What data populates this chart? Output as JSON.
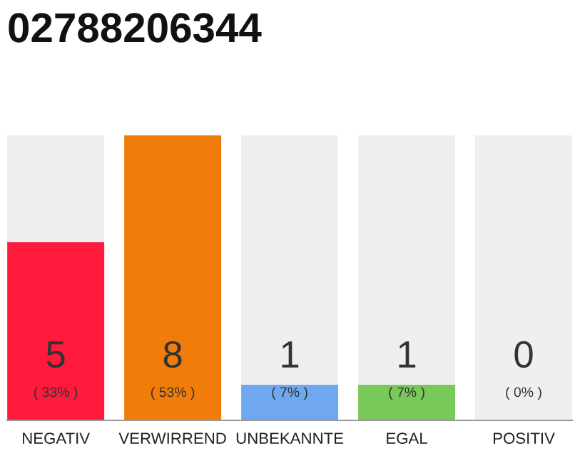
{
  "chart_data": {
    "type": "bar",
    "title": "02788206344",
    "categories": [
      "NEGATIV",
      "VERWIRREND",
      "UNBEKANNTE",
      "EGAL",
      "POSITIV"
    ],
    "stacked": true,
    "series": [
      {
        "colors": [
          "#ff1a3c",
          "#f07d0a",
          "#6fa8f0",
          "#79c85a",
          "#bbbbbb"
        ],
        "values": [
          5,
          8,
          1,
          1,
          0
        ],
        "value_labels": [
          "5",
          "8",
          "1",
          "1",
          null
        ]
      },
      {
        "color": "#efefef",
        "values": [
          3,
          0,
          7,
          7,
          8
        ]
      }
    ],
    "annotations": [
      {
        "text": "0",
        "x": "POSITIV",
        "y": 0
      },
      "( 33% )",
      "( 53% )",
      "( 7% )",
      "( 7% )",
      "( 0% )"
    ]
  }
}
